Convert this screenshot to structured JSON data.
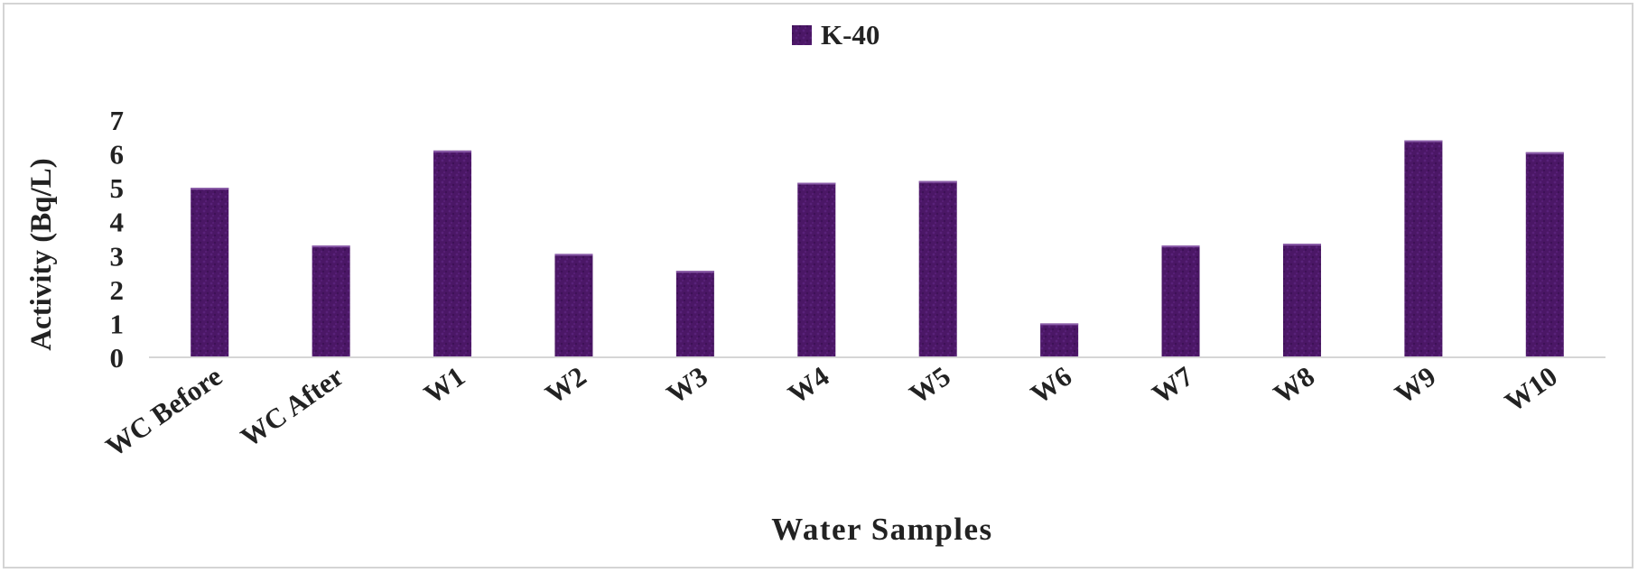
{
  "chart_data": {
    "type": "bar",
    "title": "",
    "xlabel": "Water Samples",
    "ylabel": "Activity (Bq/L)",
    "ylim": [
      0,
      7
    ],
    "yticks": [
      0,
      1,
      2,
      3,
      4,
      5,
      6,
      7
    ],
    "categories": [
      "WC Before",
      "WC After",
      "W1",
      "W2",
      "W3",
      "W4",
      "W5",
      "W6",
      "W7",
      "W8",
      "W9",
      "W10"
    ],
    "series": [
      {
        "name": "K-40",
        "color": "#4b1766",
        "values": [
          5.0,
          3.3,
          6.1,
          3.05,
          2.55,
          5.15,
          5.2,
          1.0,
          3.3,
          3.35,
          6.4,
          6.05
        ]
      }
    ],
    "legend": "top-center",
    "grid": false
  }
}
